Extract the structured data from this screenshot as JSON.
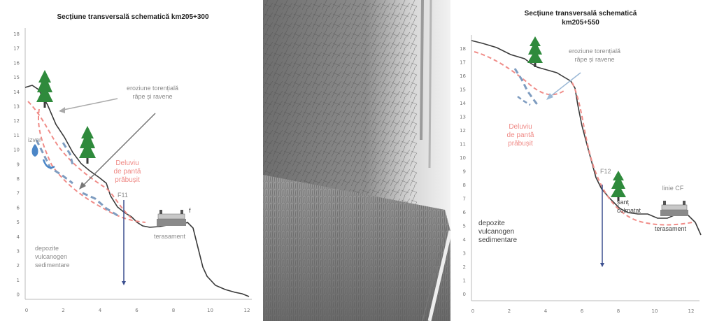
{
  "left_section": {
    "title": "Secțiune transversală schematică km205+300",
    "y_ticks": [
      "18",
      "17",
      "16",
      "15",
      "14",
      "13",
      "12",
      "11",
      "10",
      "9",
      "8",
      "7",
      "6",
      "5",
      "4",
      "3",
      "2",
      "1",
      "0"
    ],
    "x_ticks": [
      "0",
      "2",
      "4",
      "6",
      "8",
      "10",
      "12"
    ],
    "erosion_label_line1": "eroziune torențială",
    "erosion_label_line2": "râpe și ravene",
    "slide_label_line1": "Deluviu",
    "slide_label_line2": "de pantă",
    "slide_label_line3": "prăbușit",
    "spring_label": "izvor",
    "borehole_label": "F11",
    "rail_label": "f",
    "embankment_label": "terasament",
    "deposits_line1": "depozite",
    "deposits_line2": "vulcanogen",
    "deposits_line3": "sedimentare"
  },
  "right_section": {
    "title_line1": "Secțiune transversală schematică",
    "title_line2": "km205+550",
    "y_ticks": [
      "18",
      "17",
      "16",
      "15",
      "14",
      "13",
      "12",
      "11",
      "10",
      "9",
      "8",
      "7",
      "6",
      "5",
      "4",
      "3",
      "2",
      "1",
      "0"
    ],
    "x_ticks": [
      "0",
      "2",
      "4",
      "6",
      "8",
      "10",
      "12"
    ],
    "erosion_label_line1": "eroziune torențială",
    "erosion_label_line2": "râpe și ravene",
    "slide_label_line1": "Deluviu",
    "slide_label_line2": "de pantă",
    "slide_label_line3": "prăbușit",
    "borehole_label": "F12",
    "ditch_label_line1": "șanț",
    "ditch_label_line2": "colmatat",
    "rail_label": "linie CF",
    "embankment_label": "terasament",
    "deposits_line1": "depozite",
    "deposits_line2": "vulcanogen",
    "deposits_line3": "sedimentare"
  },
  "colors": {
    "terrain": "#3a3a3a",
    "sliding_zone": "#f08c88",
    "erosion": "#7e9cc0",
    "tree": "#2f8a3c",
    "borehole": "#3c4f8f",
    "spring": "#4b86c7"
  }
}
